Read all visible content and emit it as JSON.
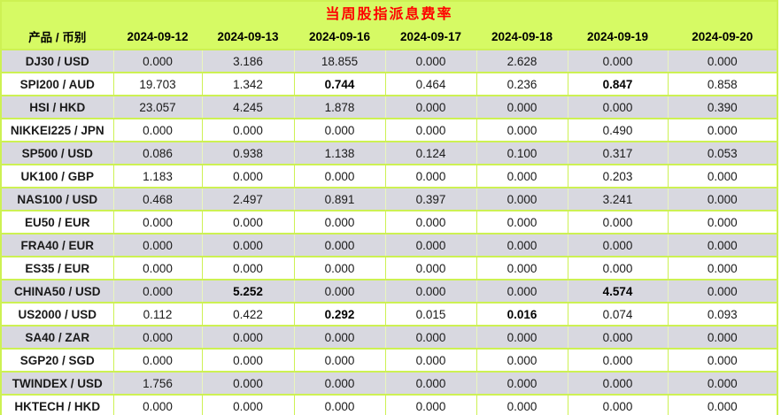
{
  "title": "当周股指派息费率",
  "table": {
    "corner_header": "产品 / 币别",
    "date_columns": [
      "2024-09-12",
      "2024-09-13",
      "2024-09-16",
      "2024-09-17",
      "2024-09-18",
      "2024-09-19",
      "2024-09-20"
    ],
    "rows": [
      {
        "product": "DJ30 / USD",
        "values": [
          "0.000",
          "3.186",
          "18.855",
          "0.000",
          "2.628",
          "0.000",
          "0.000"
        ],
        "bold_indices": []
      },
      {
        "product": "SPI200 / AUD",
        "values": [
          "19.703",
          "1.342",
          "0.744",
          "0.464",
          "0.236",
          "0.847",
          "0.858"
        ],
        "bold_indices": [
          2,
          5
        ]
      },
      {
        "product": "HSI / HKD",
        "values": [
          "23.057",
          "4.245",
          "1.878",
          "0.000",
          "0.000",
          "0.000",
          "0.390"
        ],
        "bold_indices": []
      },
      {
        "product": "NIKKEI225 / JPN",
        "values": [
          "0.000",
          "0.000",
          "0.000",
          "0.000",
          "0.000",
          "0.490",
          "0.000"
        ],
        "bold_indices": []
      },
      {
        "product": "SP500 / USD",
        "values": [
          "0.086",
          "0.938",
          "1.138",
          "0.124",
          "0.100",
          "0.317",
          "0.053"
        ],
        "bold_indices": []
      },
      {
        "product": "UK100 / GBP",
        "values": [
          "1.183",
          "0.000",
          "0.000",
          "0.000",
          "0.000",
          "0.203",
          "0.000"
        ],
        "bold_indices": []
      },
      {
        "product": "NAS100 / USD",
        "values": [
          "0.468",
          "2.497",
          "0.891",
          "0.397",
          "0.000",
          "3.241",
          "0.000"
        ],
        "bold_indices": []
      },
      {
        "product": "EU50 / EUR",
        "values": [
          "0.000",
          "0.000",
          "0.000",
          "0.000",
          "0.000",
          "0.000",
          "0.000"
        ],
        "bold_indices": []
      },
      {
        "product": "FRA40 / EUR",
        "values": [
          "0.000",
          "0.000",
          "0.000",
          "0.000",
          "0.000",
          "0.000",
          "0.000"
        ],
        "bold_indices": []
      },
      {
        "product": "ES35 / EUR",
        "values": [
          "0.000",
          "0.000",
          "0.000",
          "0.000",
          "0.000",
          "0.000",
          "0.000"
        ],
        "bold_indices": []
      },
      {
        "product": "CHINA50 / USD",
        "values": [
          "0.000",
          "5.252",
          "0.000",
          "0.000",
          "0.000",
          "4.574",
          "0.000"
        ],
        "bold_indices": [
          1,
          5
        ]
      },
      {
        "product": "US2000 / USD",
        "values": [
          "0.112",
          "0.422",
          "0.292",
          "0.015",
          "0.016",
          "0.074",
          "0.093"
        ],
        "bold_indices": [
          2,
          4
        ]
      },
      {
        "product": "SA40 / ZAR",
        "values": [
          "0.000",
          "0.000",
          "0.000",
          "0.000",
          "0.000",
          "0.000",
          "0.000"
        ],
        "bold_indices": []
      },
      {
        "product": "SGP20 / SGD",
        "values": [
          "0.000",
          "0.000",
          "0.000",
          "0.000",
          "0.000",
          "0.000",
          "0.000"
        ],
        "bold_indices": []
      },
      {
        "product": "TWINDEX / USD",
        "values": [
          "1.756",
          "0.000",
          "0.000",
          "0.000",
          "0.000",
          "0.000",
          "0.000"
        ],
        "bold_indices": []
      },
      {
        "product": "HKTECH / HKD",
        "values": [
          "0.000",
          "0.000",
          "0.000",
          "0.000",
          "0.000",
          "0.000",
          "0.000"
        ],
        "bold_indices": []
      }
    ]
  },
  "colors": {
    "header_bg": "#d6fa64",
    "grid_line": "#cdf153",
    "row_alt_bg": "#d8d8e0",
    "row_bg": "#ffffff",
    "title_text": "#ff0000"
  }
}
